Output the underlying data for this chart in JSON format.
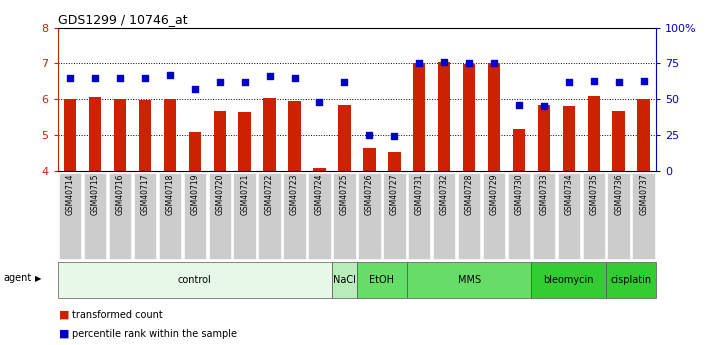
{
  "title": "GDS1299 / 10746_at",
  "samples": [
    "GSM40714",
    "GSM40715",
    "GSM40716",
    "GSM40717",
    "GSM40718",
    "GSM40719",
    "GSM40720",
    "GSM40721",
    "GSM40722",
    "GSM40723",
    "GSM40724",
    "GSM40725",
    "GSM40726",
    "GSM40727",
    "GSM40731",
    "GSM40732",
    "GSM40728",
    "GSM40729",
    "GSM40730",
    "GSM40733",
    "GSM40734",
    "GSM40735",
    "GSM40736",
    "GSM40737"
  ],
  "bar_values": [
    6.0,
    6.05,
    6.0,
    5.99,
    6.0,
    5.07,
    5.67,
    5.65,
    6.02,
    5.96,
    4.07,
    5.85,
    4.65,
    4.52,
    7.0,
    7.05,
    6.98,
    7.0,
    5.17,
    5.83,
    5.82,
    6.08,
    5.67,
    6.0
  ],
  "dot_values": [
    65,
    65,
    65,
    65,
    67,
    57,
    62,
    62,
    66,
    65,
    48,
    62,
    25,
    24,
    75,
    76,
    75,
    75,
    46,
    45,
    62,
    63,
    62,
    63
  ],
  "ylim_left": [
    4,
    8
  ],
  "ylim_right": [
    0,
    100
  ],
  "yticks_left": [
    4,
    5,
    6,
    7,
    8
  ],
  "yticks_right": [
    0,
    25,
    50,
    75,
    100
  ],
  "bar_color": "#cc2200",
  "dot_color": "#0000cc",
  "bg_color": "#ffffff",
  "tick_bg_color": "#cccccc",
  "agent_groups": [
    {
      "label": "control",
      "start": 0,
      "end": 10,
      "color": "#e8f8e8"
    },
    {
      "label": "NaCl",
      "start": 11,
      "end": 11,
      "color": "#b8ecb8"
    },
    {
      "label": "EtOH",
      "start": 12,
      "end": 13,
      "color": "#66dd66"
    },
    {
      "label": "MMS",
      "start": 14,
      "end": 18,
      "color": "#66dd66"
    },
    {
      "label": "bleomycin",
      "start": 19,
      "end": 21,
      "color": "#33cc33"
    },
    {
      "label": "cisplatin",
      "start": 22,
      "end": 23,
      "color": "#33cc33"
    }
  ]
}
